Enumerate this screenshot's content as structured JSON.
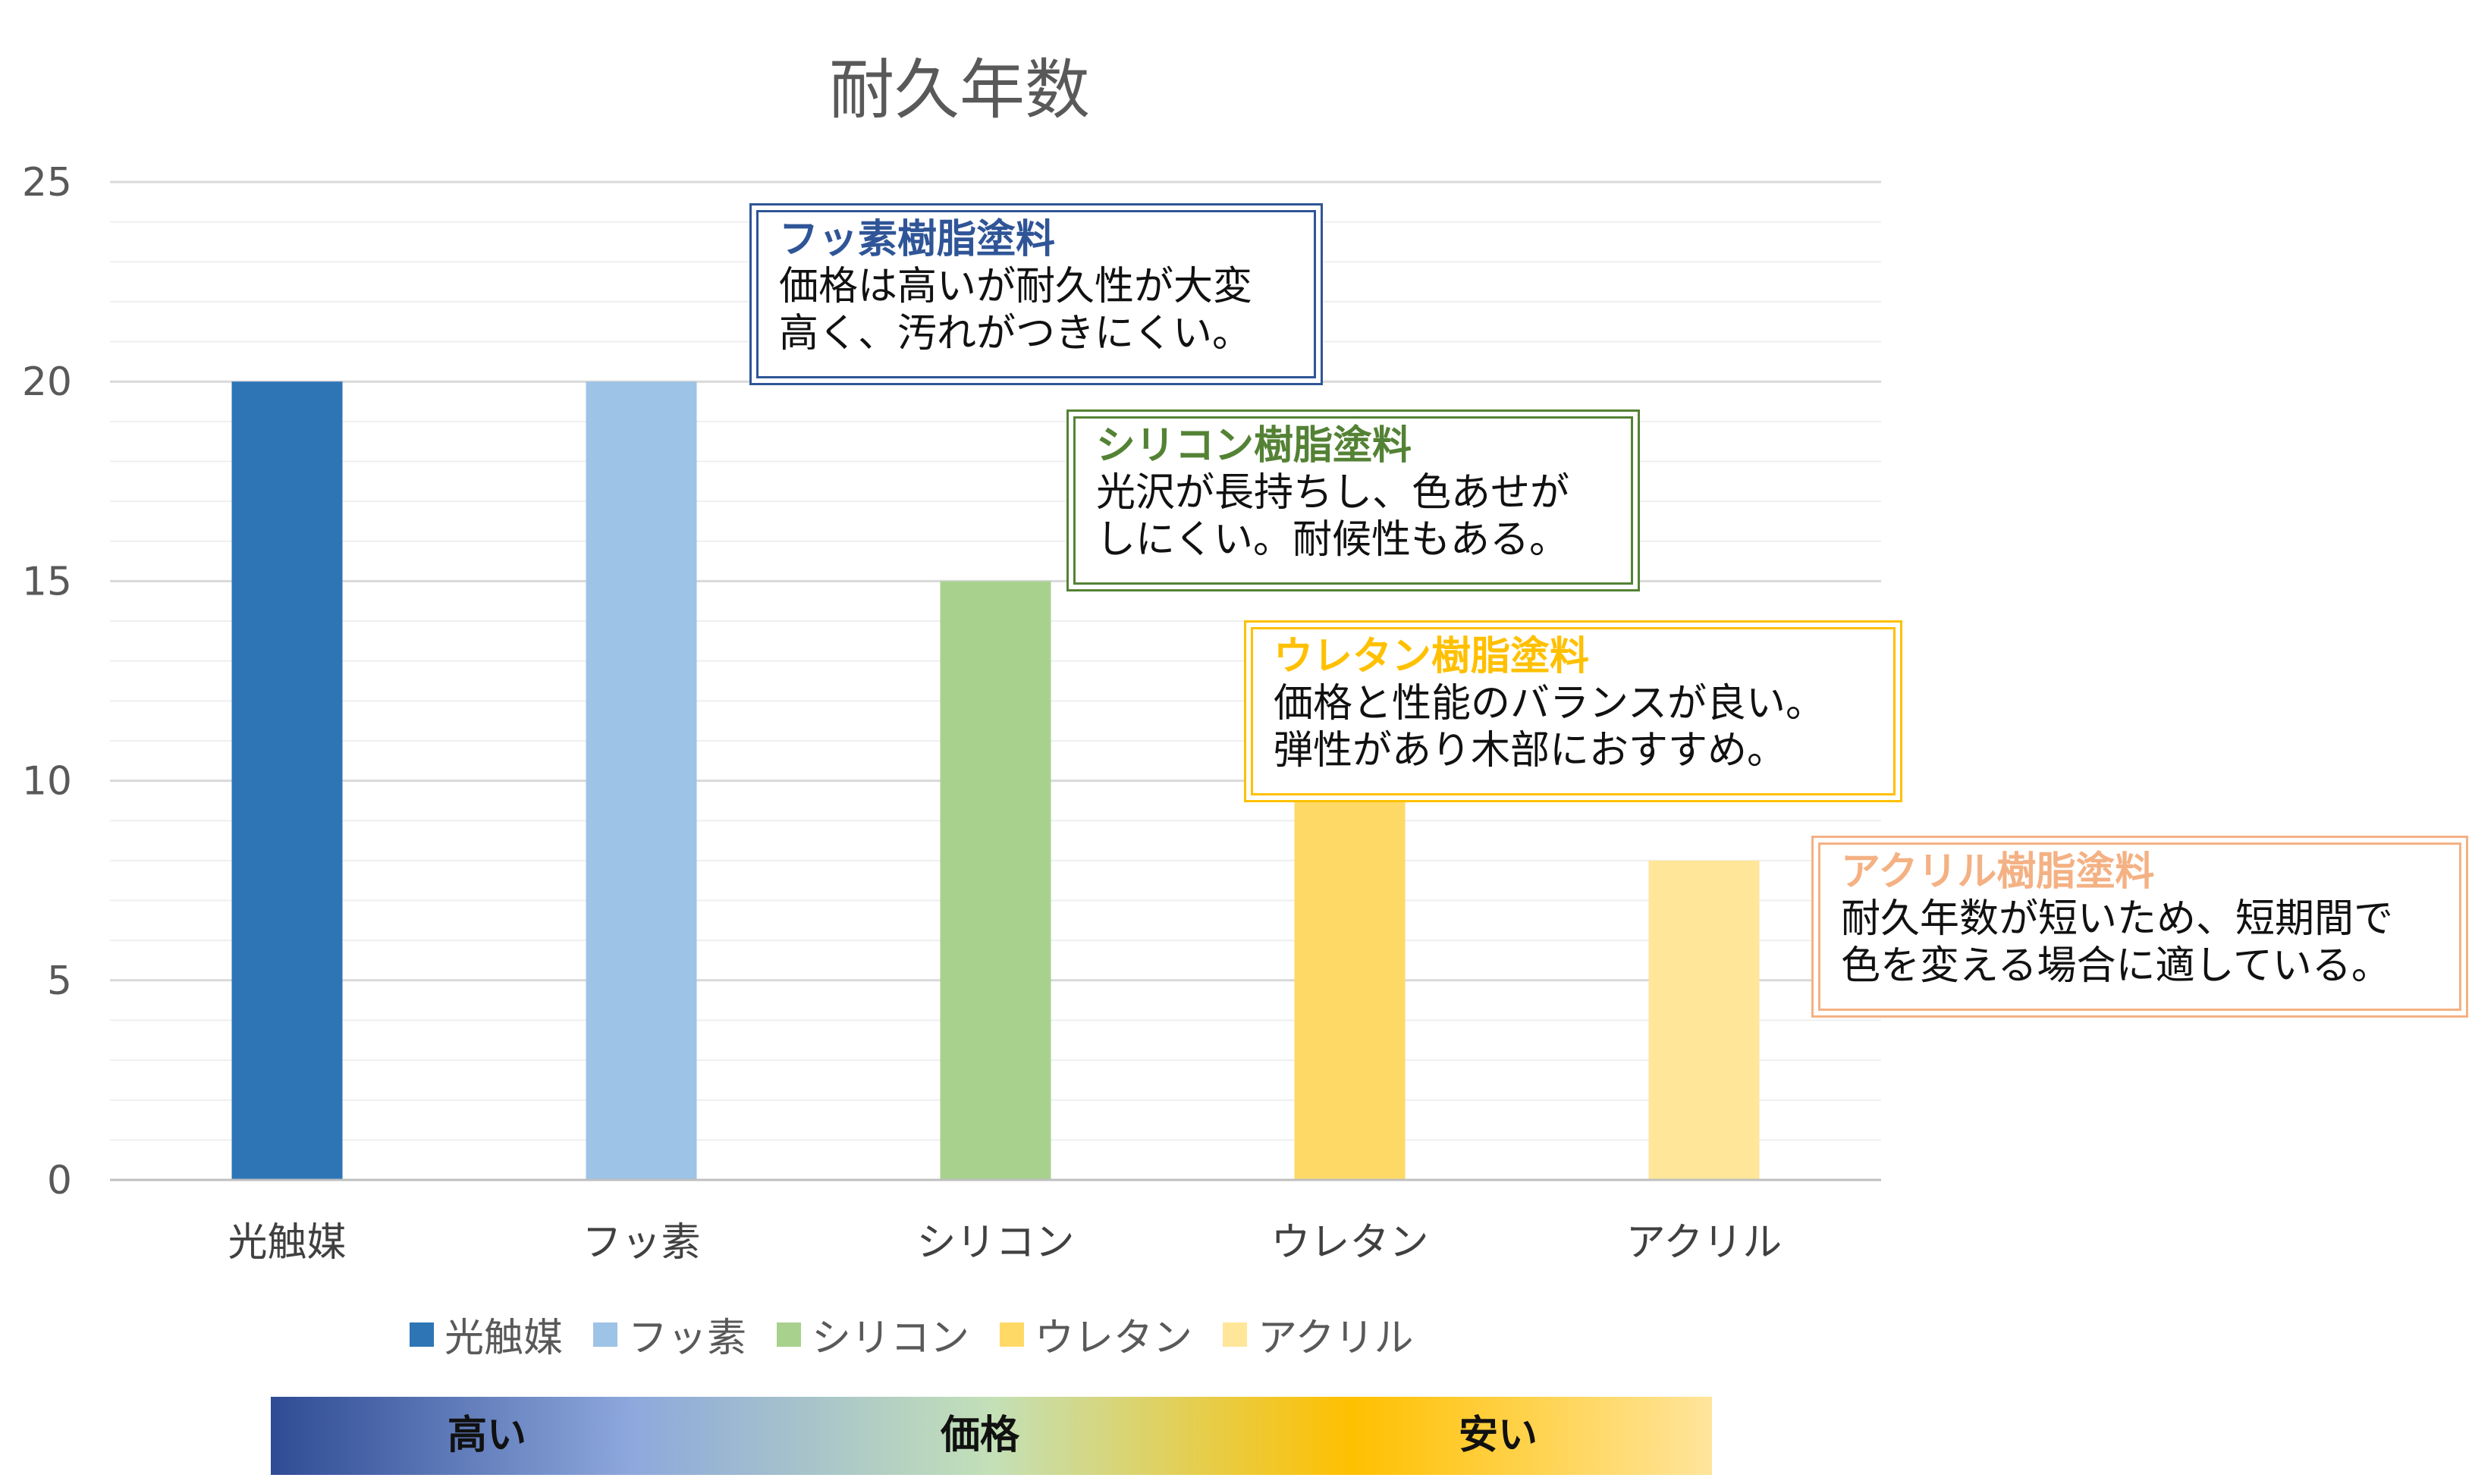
{
  "chart_data": {
    "type": "bar",
    "title": "耐久年数",
    "categories": [
      "光触媒",
      "フッ素",
      "シリコン",
      "ウレタン",
      "アクリル"
    ],
    "values": [
      20,
      20,
      15,
      10,
      8
    ],
    "colors": [
      "#2e75b6",
      "#9dc3e6",
      "#a9d18e",
      "#ffd966",
      "#ffe699"
    ],
    "ylim": [
      0,
      25
    ],
    "yticks": [
      "0",
      "5",
      "10",
      "15",
      "20",
      "25"
    ],
    "grid": true,
    "legend": "bottom"
  },
  "callouts": [
    {
      "title": "フッ素樹脂塗料",
      "text": "価格は高いが耐久性が大変\n高く、汚れがつきにくい。",
      "color": "#2f5597"
    },
    {
      "title": "シリコン樹脂塗料",
      "text": "光沢が長持ちし、色あせが\nしにくい。耐候性もある。",
      "color": "#548235"
    },
    {
      "title": "ウレタン樹脂塗料",
      "text": "価格と性能のバランスが良い。\n弾性があり木部におすすめ。",
      "color": "#ffc000"
    },
    {
      "title": "アクリル樹脂塗料",
      "text": "耐久年数が短いため、短期間で\n色を変える場合に適している。",
      "color": "#f4b183"
    }
  ],
  "price_scale": {
    "high": "高い",
    "label": "価格",
    "low": "安い"
  }
}
